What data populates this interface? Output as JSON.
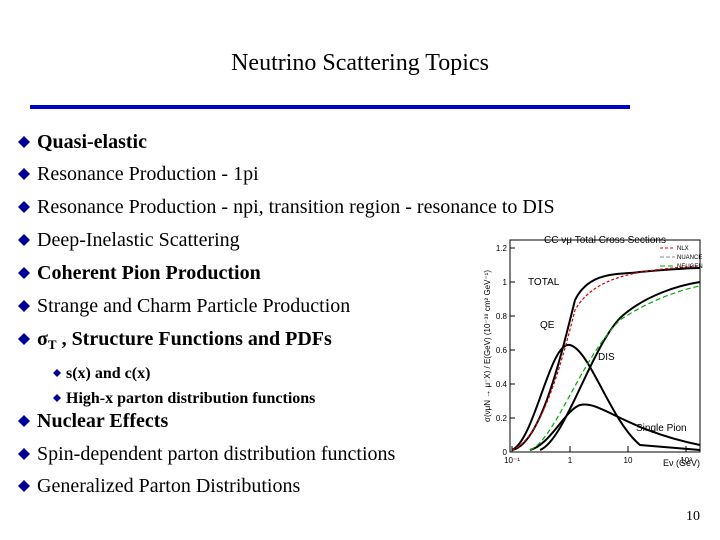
{
  "title": "Neutrino Scattering Topics",
  "bullets": [
    {
      "text": "Quasi-elastic",
      "bold": true
    },
    {
      "text": "Resonance Production - 1pi",
      "bold": false
    },
    {
      "text": "Resonance Production - npi, transition region - resonance to DIS",
      "bold": false
    },
    {
      "text": "Deep-Inelastic Scattering",
      "bold": false
    },
    {
      "text": "Coherent Pion Production",
      "bold": true
    },
    {
      "text": "Strange and Charm Particle Production",
      "bold": false
    },
    {
      "symbol": "σ",
      "sub": "T",
      "text": " , Structure Functions and PDFs",
      "bold": true,
      "subbullets": [
        "s(x) and c(x)",
        "High-x parton distribution functions"
      ]
    },
    {
      "text": "Nuclear Effects",
      "bold": true
    },
    {
      "text": "Spin-dependent parton distribution functions",
      "bold": false
    },
    {
      "text": "Generalized Parton Distributions",
      "bold": false
    }
  ],
  "figure": {
    "title": "CC νμ Total Cross Sections",
    "y_label": "σ(νμN → μ⁻X) / E(GeV)  (10⁻³⁸ cm² GeV⁻¹)",
    "x_label": "Eν (GeV)",
    "y_ticks": [
      "0",
      "0.2",
      "0.4",
      "0.6",
      "0.8",
      "1",
      "1.2"
    ],
    "x_ticks": [
      "10⁻¹",
      "1",
      "10",
      "10²"
    ],
    "legend": [
      "NLX",
      "NUANCE",
      "NEUGEN"
    ],
    "curve_labels": [
      "TOTAL",
      "QE",
      "DIS",
      "Single Pion"
    ]
  },
  "page_number": "10"
}
